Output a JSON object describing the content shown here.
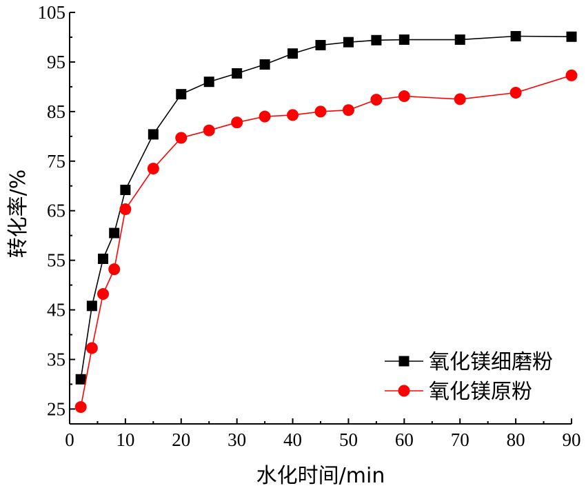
{
  "chart_data": {
    "type": "line",
    "title": "",
    "xlabel": "水化时间/min",
    "ylabel": "转化率/%",
    "xlim": [
      0,
      90
    ],
    "ylim": [
      22,
      105
    ],
    "xticks": [
      "0",
      "10",
      "20",
      "30",
      "40",
      "50",
      "60",
      "70",
      "80",
      "90"
    ],
    "yticks": [
      "25",
      "35",
      "45",
      "55",
      "65",
      "75",
      "85",
      "95",
      "105"
    ],
    "grid": false,
    "legend_position": "bottom-right",
    "series": [
      {
        "name": "氧化镁细磨粉",
        "color": "#000000",
        "marker": "square",
        "x": [
          2,
          4,
          6,
          8,
          10,
          15,
          20,
          25,
          30,
          35,
          40,
          45,
          50,
          55,
          60,
          70,
          80,
          90
        ],
        "y": [
          31,
          45.8,
          55.3,
          60.5,
          69.2,
          80.4,
          88.5,
          91.0,
          92.7,
          94.5,
          96.7,
          98.4,
          99.0,
          99.4,
          99.5,
          99.5,
          100.2,
          100.1
        ]
      },
      {
        "name": "氧化镁原粉",
        "color": "#ff0000",
        "marker": "circle",
        "x": [
          2,
          4,
          6,
          8,
          10,
          15,
          20,
          25,
          30,
          35,
          40,
          45,
          50,
          55,
          60,
          70,
          80,
          90
        ],
        "y": [
          25.4,
          37.3,
          48.2,
          53.2,
          65.3,
          73.5,
          79.7,
          81.2,
          82.8,
          84.0,
          84.3,
          85.0,
          85.3,
          87.4,
          88.1,
          87.5,
          88.8,
          92.3
        ]
      }
    ]
  }
}
